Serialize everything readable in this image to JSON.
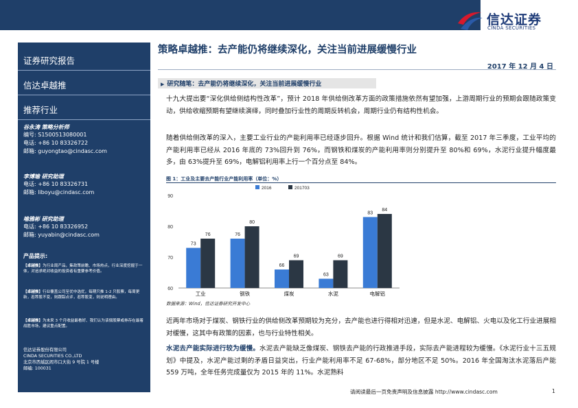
{
  "brand": {
    "name_cn": "信达证券",
    "name_en": "CINDA SECURITIES",
    "colors": {
      "navy": "#1f3f69",
      "red": "#d7192c",
      "blue": "#2a5aa8",
      "bar_2016": "#3a7bd5",
      "bar_2017": "#2b3744"
    }
  },
  "header": {
    "title": "策略卓越推：去产能仍将继续深化，关注当前进展缓慢行业",
    "date": "2017 年 12 月 4 日"
  },
  "sidebar": {
    "report_type": "证券研究报告",
    "series": "信达卓越推",
    "section": "推荐行业",
    "analysts": [
      {
        "name": "谷永涛   策略分析师",
        "lines": [
          "编号: S1500513080001",
          "电话: +86 10 83326722",
          "邮箱: guyongtao@cindasc.com"
        ]
      },
      {
        "name": "李博瑜   研究助理",
        "lines": [
          "电话: +86 10 83326731",
          "邮箱: liboyu@cindasc.com"
        ]
      },
      {
        "name": "喻雅彬   研究助理",
        "lines": [
          "电话: +86 10 83326952",
          "邮箱: yuyabin@cindasc.com"
        ]
      }
    ],
    "tips_title": "产品提示:",
    "tips": [
      {
        "tag": "【卓越推】",
        "text": "为行业周产品，集政策前瞻、市场热点，行业深度挖掘于一体，对追求绝对收益的投资者有重要参考价值。"
      },
      {
        "tag": "【卓越推】",
        "text": "行业覆盖公司至优中选优，每期只推 1-2 只股票，每周更新，若荐股不变，则跟踪点评，若荐股变，则说明理由。"
      },
      {
        "tag": "【卓越推】",
        "text": "为未来 3 个月收益最看好、我们认为该偿股票或券存在最着战胜市场，建议重点配置。"
      }
    ],
    "company": [
      "信达证券股份有限公司",
      "CINDA SECURITIES CO.,LTD",
      "北京市西城区闹市口大街 9 号院 1 号楼",
      "邮编: 100031"
    ]
  },
  "body": {
    "subheading": "研究随笔：去产能仍将继续深化，关注当前进展缓慢行业",
    "para1": "十九大提出要“深化供给侧结构性改革”，预计 2018 年供给侧改革方面的政策措施依然有望加强，上游周期行业的预期会跟随政策变动，供给收缩预期有望继续演绎，同时叠加行业性的周期反转机会，周期行业仍有结构性机会。",
    "para2": "随着供给侧改革的深入，主要工业行业的产能利用率已经逐步回升。根据 Wind 统计和我们估算，截至 2017 年三季度，工业平均的产能利用率已经从 2016 年底的 73%回升到 76%，而钢铁和煤炭的产能利用率则分别提升至 80%和 69%，水泥行业提升幅度最多，由 63%提升至 69%，电解铝利用率上行一个百分点至 84%。",
    "para3": "近两年市场对于煤炭、钢铁行业的供给侧改革预期较为充分，去产能也进行得相对迅速，但是水泥、电解铝、火电以及化工行业进展相对缓慢，这其中有政策的因素，也与行业特性相关。",
    "para4_bold": "水泥去产能实际进行较为缓慢。",
    "para4": "水泥去产能缺乏像煤炭、钢铁去产能的行政推进手段，实际去产能进程较为缓慢。《水泥行业十三五规划》中提及，水泥产能过剩的矛盾日益突出，行业产能利用率不足 67-68%，部分地区不足 50%。2016 年全国淘汰水泥落后产能 559 万吨，全年任务完成量仅为 2015 年的 11%。水泥熟料"
  },
  "figure": {
    "caption": "图 1：工业及主要去产能行业产能利用率（单位：%）",
    "source": "数据来源：Wind，信达证券研究开发中心"
  },
  "chart_data": {
    "type": "bar",
    "categories": [
      "工业",
      "钢铁",
      "煤炭",
      "水泥",
      "电解铝"
    ],
    "series": [
      {
        "name": "2016",
        "values": [
          73,
          76,
          66,
          63,
          83
        ]
      },
      {
        "name": "201703",
        "values": [
          76,
          80,
          69,
          69,
          84
        ]
      }
    ],
    "data_labels": [
      [
        "73",
        "76"
      ],
      [
        "76",
        "80"
      ],
      [
        "66",
        "69"
      ],
      [
        "63",
        "69"
      ],
      [
        "83",
        "84"
      ]
    ],
    "ylim": [
      60,
      90
    ],
    "yticks": [
      60,
      70,
      80,
      90
    ],
    "grid": false,
    "legend": "top-center"
  },
  "footer": {
    "text": "请阅读最后一页免责声明及信息披露 http://www.cindasc.com",
    "page": "1"
  }
}
